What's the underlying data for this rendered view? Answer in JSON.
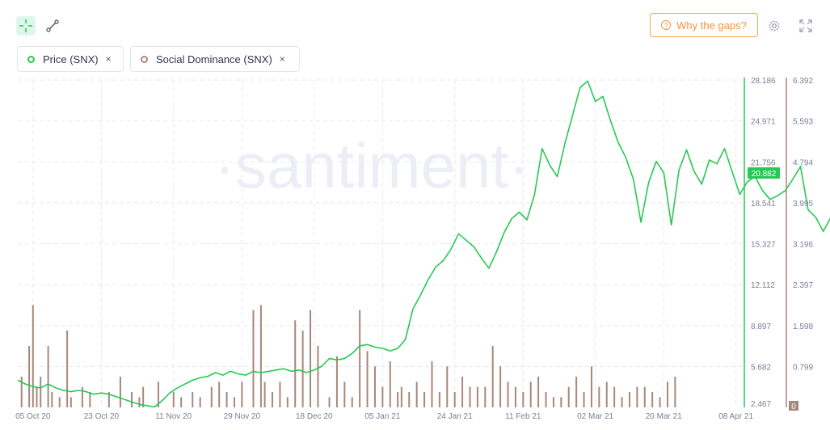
{
  "toolbar": {
    "cursor_icon": "crosshair-icon",
    "line_icon": "line-draw-icon",
    "gaps_label": "Why the gaps?",
    "gaps_icon_glyph": "?",
    "settings_icon": "gear-icon",
    "fullscreen_icon": "fullscreen-icon"
  },
  "metrics": [
    {
      "label": "Price (SNX)",
      "color": "#26c953",
      "remove": "×"
    },
    {
      "label": "Social Dominance (SNX)",
      "color": "#a8877c",
      "remove": "×"
    }
  ],
  "watermark": "·santiment·",
  "chart_data": {
    "type": "line",
    "x_labels": [
      "05 Oct 20",
      "23 Oct 20",
      "11 Nov 20",
      "29 Nov 20",
      "18 Dec 20",
      "05 Jan 21",
      "24 Jan 21",
      "11 Feb 21",
      "02 Mar 21",
      "20 Mar 21",
      "08 Apr 21"
    ],
    "x_range": [
      "2020-10-01",
      "2021-04-10"
    ],
    "y_left": {
      "ticks": [
        "28.186",
        "24.971",
        "21.756",
        "18.541",
        "15.327",
        "12.112",
        "8.897",
        "5.682",
        "2.467"
      ],
      "min": 2.467,
      "max": 28.186
    },
    "y_right": {
      "ticks": [
        "6.392",
        "5.593",
        "4.794",
        "3.995",
        "3.196",
        "2.397",
        "1.598",
        "0.799",
        "0"
      ],
      "min": 0,
      "max": 6.392
    },
    "current_price_label": "20.882",
    "series": [
      {
        "name": "Price (SNX)",
        "axis": "left",
        "color": "#26c953",
        "points": [
          [
            0,
            4.6
          ],
          [
            2,
            4.3
          ],
          [
            4,
            4.1
          ],
          [
            6,
            4.0
          ],
          [
            8,
            4.3
          ],
          [
            10,
            4.0
          ],
          [
            12,
            3.8
          ],
          [
            14,
            3.7
          ],
          [
            16,
            3.8
          ],
          [
            18,
            3.7
          ],
          [
            20,
            3.5
          ],
          [
            22,
            3.6
          ],
          [
            24,
            3.5
          ],
          [
            26,
            3.3
          ],
          [
            28,
            3.1
          ],
          [
            30,
            2.9
          ],
          [
            32,
            2.7
          ],
          [
            34,
            2.6
          ],
          [
            36,
            2.5
          ],
          [
            38,
            3.0
          ],
          [
            40,
            3.6
          ],
          [
            42,
            4.0
          ],
          [
            44,
            4.3
          ],
          [
            46,
            4.6
          ],
          [
            48,
            4.8
          ],
          [
            50,
            4.9
          ],
          [
            52,
            5.2
          ],
          [
            54,
            5.0
          ],
          [
            56,
            5.3
          ],
          [
            58,
            5.1
          ],
          [
            60,
            5.0
          ],
          [
            62,
            5.3
          ],
          [
            64,
            5.2
          ],
          [
            66,
            5.3
          ],
          [
            68,
            5.4
          ],
          [
            70,
            5.5
          ],
          [
            72,
            5.3
          ],
          [
            74,
            5.4
          ],
          [
            76,
            5.2
          ],
          [
            78,
            5.4
          ],
          [
            80,
            5.7
          ],
          [
            82,
            6.3
          ],
          [
            84,
            6.2
          ],
          [
            86,
            6.3
          ],
          [
            88,
            6.7
          ],
          [
            90,
            7.3
          ],
          [
            92,
            7.4
          ],
          [
            94,
            7.2
          ],
          [
            96,
            7.1
          ],
          [
            98,
            6.9
          ],
          [
            100,
            7.1
          ],
          [
            102,
            7.8
          ],
          [
            104,
            10.2
          ],
          [
            106,
            11.3
          ],
          [
            108,
            12.5
          ],
          [
            110,
            13.5
          ],
          [
            112,
            14.0
          ],
          [
            114,
            14.9
          ],
          [
            116,
            16.1
          ],
          [
            118,
            15.6
          ],
          [
            120,
            15.1
          ],
          [
            122,
            14.2
          ],
          [
            124,
            13.4
          ],
          [
            126,
            14.7
          ],
          [
            128,
            16.2
          ],
          [
            130,
            17.3
          ],
          [
            132,
            17.8
          ],
          [
            134,
            17.2
          ],
          [
            136,
            19.2
          ],
          [
            138,
            22.8
          ],
          [
            140,
            21.5
          ],
          [
            142,
            20.6
          ],
          [
            144,
            23.2
          ],
          [
            146,
            25.4
          ],
          [
            148,
            27.6
          ],
          [
            150,
            28.1
          ],
          [
            152,
            26.5
          ],
          [
            154,
            26.9
          ],
          [
            156,
            25.0
          ],
          [
            158,
            23.3
          ],
          [
            160,
            22.1
          ],
          [
            162,
            20.4
          ],
          [
            164,
            17.0
          ],
          [
            166,
            20.1
          ],
          [
            168,
            21.8
          ],
          [
            170,
            20.9
          ],
          [
            172,
            16.8
          ],
          [
            174,
            21.1
          ],
          [
            176,
            22.7
          ],
          [
            178,
            21.0
          ],
          [
            180,
            20.0
          ],
          [
            182,
            21.9
          ],
          [
            184,
            21.6
          ],
          [
            186,
            22.8
          ],
          [
            188,
            21.0
          ],
          [
            190,
            19.2
          ],
          [
            192,
            20.2
          ],
          [
            194,
            20.6
          ],
          [
            196,
            19.5
          ],
          [
            198,
            18.8
          ],
          [
            200,
            19.1
          ],
          [
            202,
            19.5
          ],
          [
            204,
            20.4
          ],
          [
            206,
            21.4
          ],
          [
            208,
            18.0
          ],
          [
            210,
            17.4
          ],
          [
            212,
            16.3
          ],
          [
            214,
            17.4
          ],
          [
            216,
            16.8
          ],
          [
            218,
            16.3
          ],
          [
            220,
            18.0
          ],
          [
            222,
            18.9
          ],
          [
            224,
            22.0
          ],
          [
            226,
            20.3
          ],
          [
            228,
            21.3
          ],
          [
            229,
            20.882
          ]
        ]
      },
      {
        "name": "Social Dominance (SNX)",
        "axis": "right",
        "color": "#a8877c",
        "points": [
          [
            1,
            0.6
          ],
          [
            3,
            1.2
          ],
          [
            4,
            2.0
          ],
          [
            5,
            0.4
          ],
          [
            6,
            0.6
          ],
          [
            8,
            1.2
          ],
          [
            9,
            0.3
          ],
          [
            11,
            0.2
          ],
          [
            13,
            1.5
          ],
          [
            14,
            0.2
          ],
          [
            17,
            0.4
          ],
          [
            19,
            0.3
          ],
          [
            24,
            0.3
          ],
          [
            27,
            0.6
          ],
          [
            30,
            0.3
          ],
          [
            32,
            0.2
          ],
          [
            33,
            0.4
          ],
          [
            37,
            0.5
          ],
          [
            41,
            0.3
          ],
          [
            43,
            0.2
          ],
          [
            46,
            0.3
          ],
          [
            48,
            0.2
          ],
          [
            51,
            0.4
          ],
          [
            53,
            0.5
          ],
          [
            55,
            0.3
          ],
          [
            57,
            0.2
          ],
          [
            59,
            0.5
          ],
          [
            62,
            1.9
          ],
          [
            64,
            2.0
          ],
          [
            65,
            0.5
          ],
          [
            67,
            0.3
          ],
          [
            69,
            0.5
          ],
          [
            71,
            0.2
          ],
          [
            73,
            1.7
          ],
          [
            75,
            1.5
          ],
          [
            77,
            1.9
          ],
          [
            79,
            1.2
          ],
          [
            82,
            0.2
          ],
          [
            84,
            1.0
          ],
          [
            86,
            0.5
          ],
          [
            88,
            0.2
          ],
          [
            90,
            1.9
          ],
          [
            92,
            1.1
          ],
          [
            94,
            0.8
          ],
          [
            96,
            0.4
          ],
          [
            98,
            0.9
          ],
          [
            100,
            0.3
          ],
          [
            101,
            0.4
          ],
          [
            103,
            0.3
          ],
          [
            105,
            0.5
          ],
          [
            107,
            0.3
          ],
          [
            109,
            0.9
          ],
          [
            111,
            0.3
          ],
          [
            113,
            0.8
          ],
          [
            115,
            0.3
          ],
          [
            117,
            0.6
          ],
          [
            119,
            0.4
          ],
          [
            121,
            0.4
          ],
          [
            123,
            0.4
          ],
          [
            125,
            1.2
          ],
          [
            127,
            0.8
          ],
          [
            129,
            0.5
          ],
          [
            131,
            0.4
          ],
          [
            133,
            0.3
          ],
          [
            135,
            0.5
          ],
          [
            137,
            0.6
          ],
          [
            139,
            0.3
          ],
          [
            141,
            0.2
          ],
          [
            143,
            0.2
          ],
          [
            145,
            0.4
          ],
          [
            147,
            0.6
          ],
          [
            149,
            0.3
          ],
          [
            151,
            0.8
          ],
          [
            153,
            0.4
          ],
          [
            155,
            0.5
          ],
          [
            157,
            0.4
          ],
          [
            159,
            0.2
          ],
          [
            161,
            0.3
          ],
          [
            163,
            0.4
          ],
          [
            165,
            0.4
          ],
          [
            167,
            0.3
          ],
          [
            169,
            0.2
          ],
          [
            171,
            0.5
          ],
          [
            173,
            0.6
          ]
        ]
      }
    ]
  }
}
